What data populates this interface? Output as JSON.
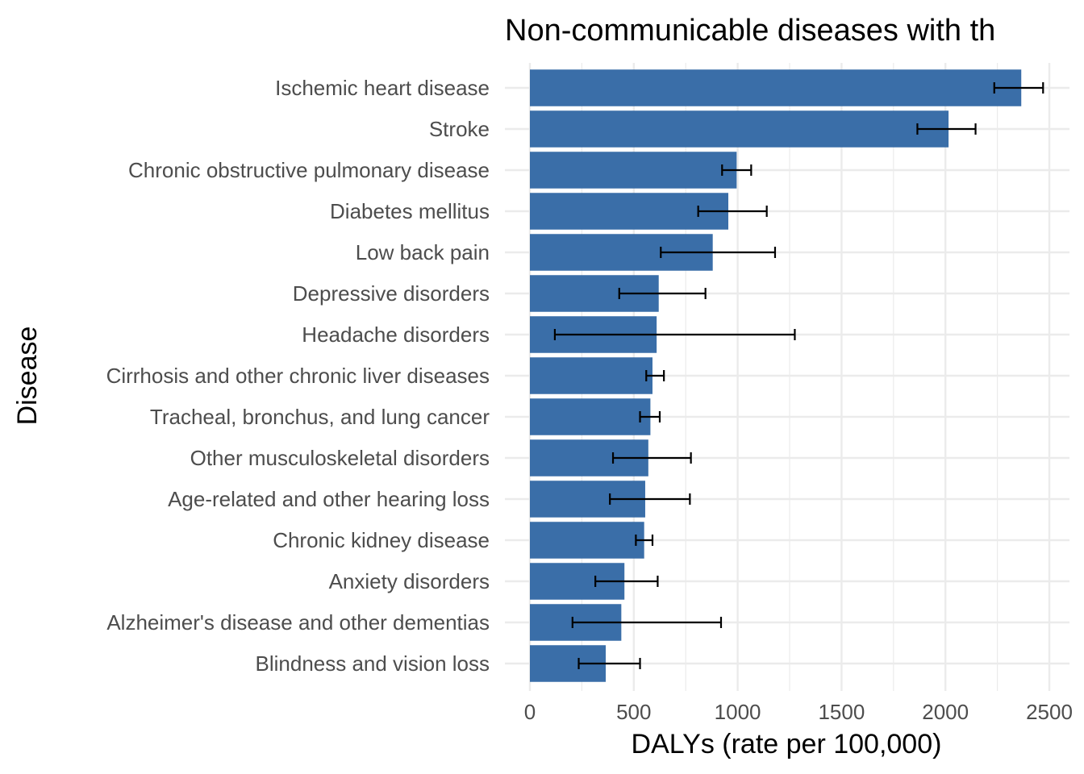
{
  "chart_data": {
    "type": "bar",
    "orientation": "horizontal",
    "title": "Non-communicable diseases with th",
    "xlabel": "DALYs (rate per 100,000)",
    "ylabel": "Disease",
    "xlim": [
      0,
      2500
    ],
    "x_ticks": [
      "0",
      "500",
      "1000",
      "1500",
      "2000",
      "2500"
    ],
    "x_tick_values": [
      0,
      500,
      1000,
      1500,
      2000,
      2500
    ],
    "grid": true,
    "legend": "none",
    "colors": {
      "bar": "#3A6EA8",
      "grid": "#EBEBEB",
      "error_bar": "#000000",
      "text": "#4D4D4D",
      "title": "#000000"
    },
    "categories": [
      "Ischemic heart disease",
      "Stroke",
      "Chronic obstructive pulmonary disease",
      "Diabetes mellitus",
      "Low back pain",
      "Depressive disorders",
      "Headache disorders",
      "Cirrhosis and other chronic liver diseases",
      "Tracheal, bronchus, and lung cancer",
      "Other musculoskeletal disorders",
      "Age-related and other hearing loss",
      "Chronic kidney disease",
      "Anxiety disorders",
      "Alzheimer's disease and other dementias",
      "Blindness and vision loss"
    ],
    "values": [
      2365,
      2015,
      995,
      955,
      880,
      620,
      610,
      590,
      580,
      570,
      555,
      550,
      455,
      440,
      365
    ],
    "error_low": [
      2235,
      1865,
      925,
      810,
      630,
      430,
      120,
      560,
      530,
      400,
      385,
      510,
      315,
      205,
      235
    ],
    "error_high": [
      2470,
      2145,
      1065,
      1140,
      1180,
      845,
      1275,
      645,
      625,
      775,
      770,
      590,
      615,
      920,
      530
    ]
  }
}
